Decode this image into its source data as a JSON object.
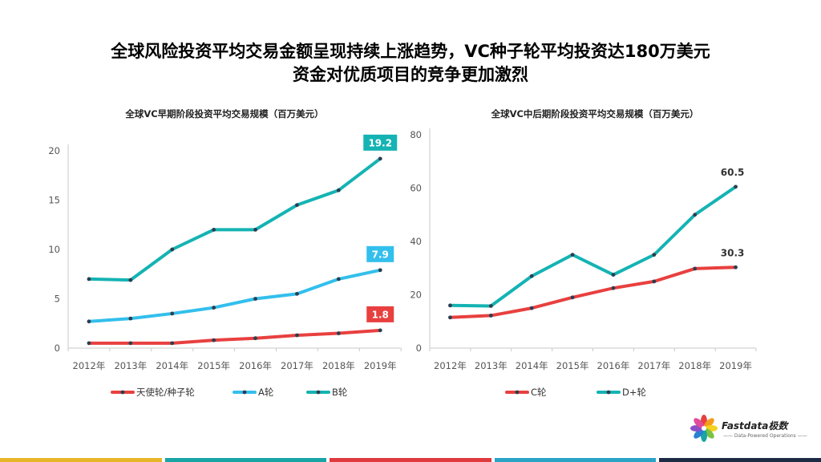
{
  "page": {
    "title_line1": "全球风险投资平均交易金额呈现持续上涨趋势，VC种子轮平均投资达180万美元",
    "title_line2": "资金对优质项目的竞争更加激烈"
  },
  "brand": {
    "name": "Fastdata极数",
    "tagline": "—— Data-Powered Operations ——",
    "icon": "colorful-pinwheel-logo"
  },
  "footer_colors": [
    "#e8b52a",
    "#1aa5a5",
    "#e03a3e",
    "#2aa3c6",
    "#1c2b44"
  ],
  "chart_data": [
    {
      "type": "line",
      "title": "全球VC早期阶段投资平均交易规模（百万美元）",
      "categories": [
        "2012年",
        "2013年",
        "2014年",
        "2015年",
        "2016年",
        "2017年",
        "2018年",
        "2019年"
      ],
      "ylim": [
        0,
        20
      ],
      "yticks": [
        0,
        5,
        10,
        15,
        20
      ],
      "grid": false,
      "legend_position": "bottom",
      "series": [
        {
          "name": "天使轮/种子轮",
          "color": "#e8403f",
          "values": [
            0.5,
            0.5,
            0.5,
            0.8,
            1.0,
            1.3,
            1.5,
            1.8
          ],
          "end_label": "1.8"
        },
        {
          "name": "A轮",
          "color": "#33bfec",
          "values": [
            2.7,
            3.0,
            3.5,
            4.1,
            5.0,
            5.5,
            7.0,
            7.9
          ],
          "end_label": "7.9"
        },
        {
          "name": "B轮",
          "color": "#15b3b3",
          "values": [
            7.0,
            6.9,
            10.0,
            12.0,
            12.0,
            14.5,
            16.0,
            19.2
          ],
          "end_label": "19.2"
        }
      ]
    },
    {
      "type": "line",
      "title": "全球VC中后期阶段投资平均交易规模（百万美元）",
      "categories": [
        "2012年",
        "2013年",
        "2014年",
        "2015年",
        "2016年",
        "2017年",
        "2018年",
        "2019年"
      ],
      "ylim": [
        0,
        80
      ],
      "yticks": [
        0,
        20,
        40,
        60,
        80
      ],
      "grid": false,
      "legend_position": "bottom",
      "series": [
        {
          "name": "C轮",
          "color": "#e8403f",
          "values": [
            11.5,
            12.2,
            15.0,
            19.0,
            22.5,
            25.0,
            29.8,
            30.3
          ],
          "end_label": "30.3"
        },
        {
          "name": "D+轮",
          "color": "#15b3b3",
          "values": [
            16.0,
            15.8,
            27.0,
            35.0,
            27.5,
            35.0,
            50.0,
            60.5
          ],
          "end_label": "60.5"
        }
      ]
    }
  ]
}
